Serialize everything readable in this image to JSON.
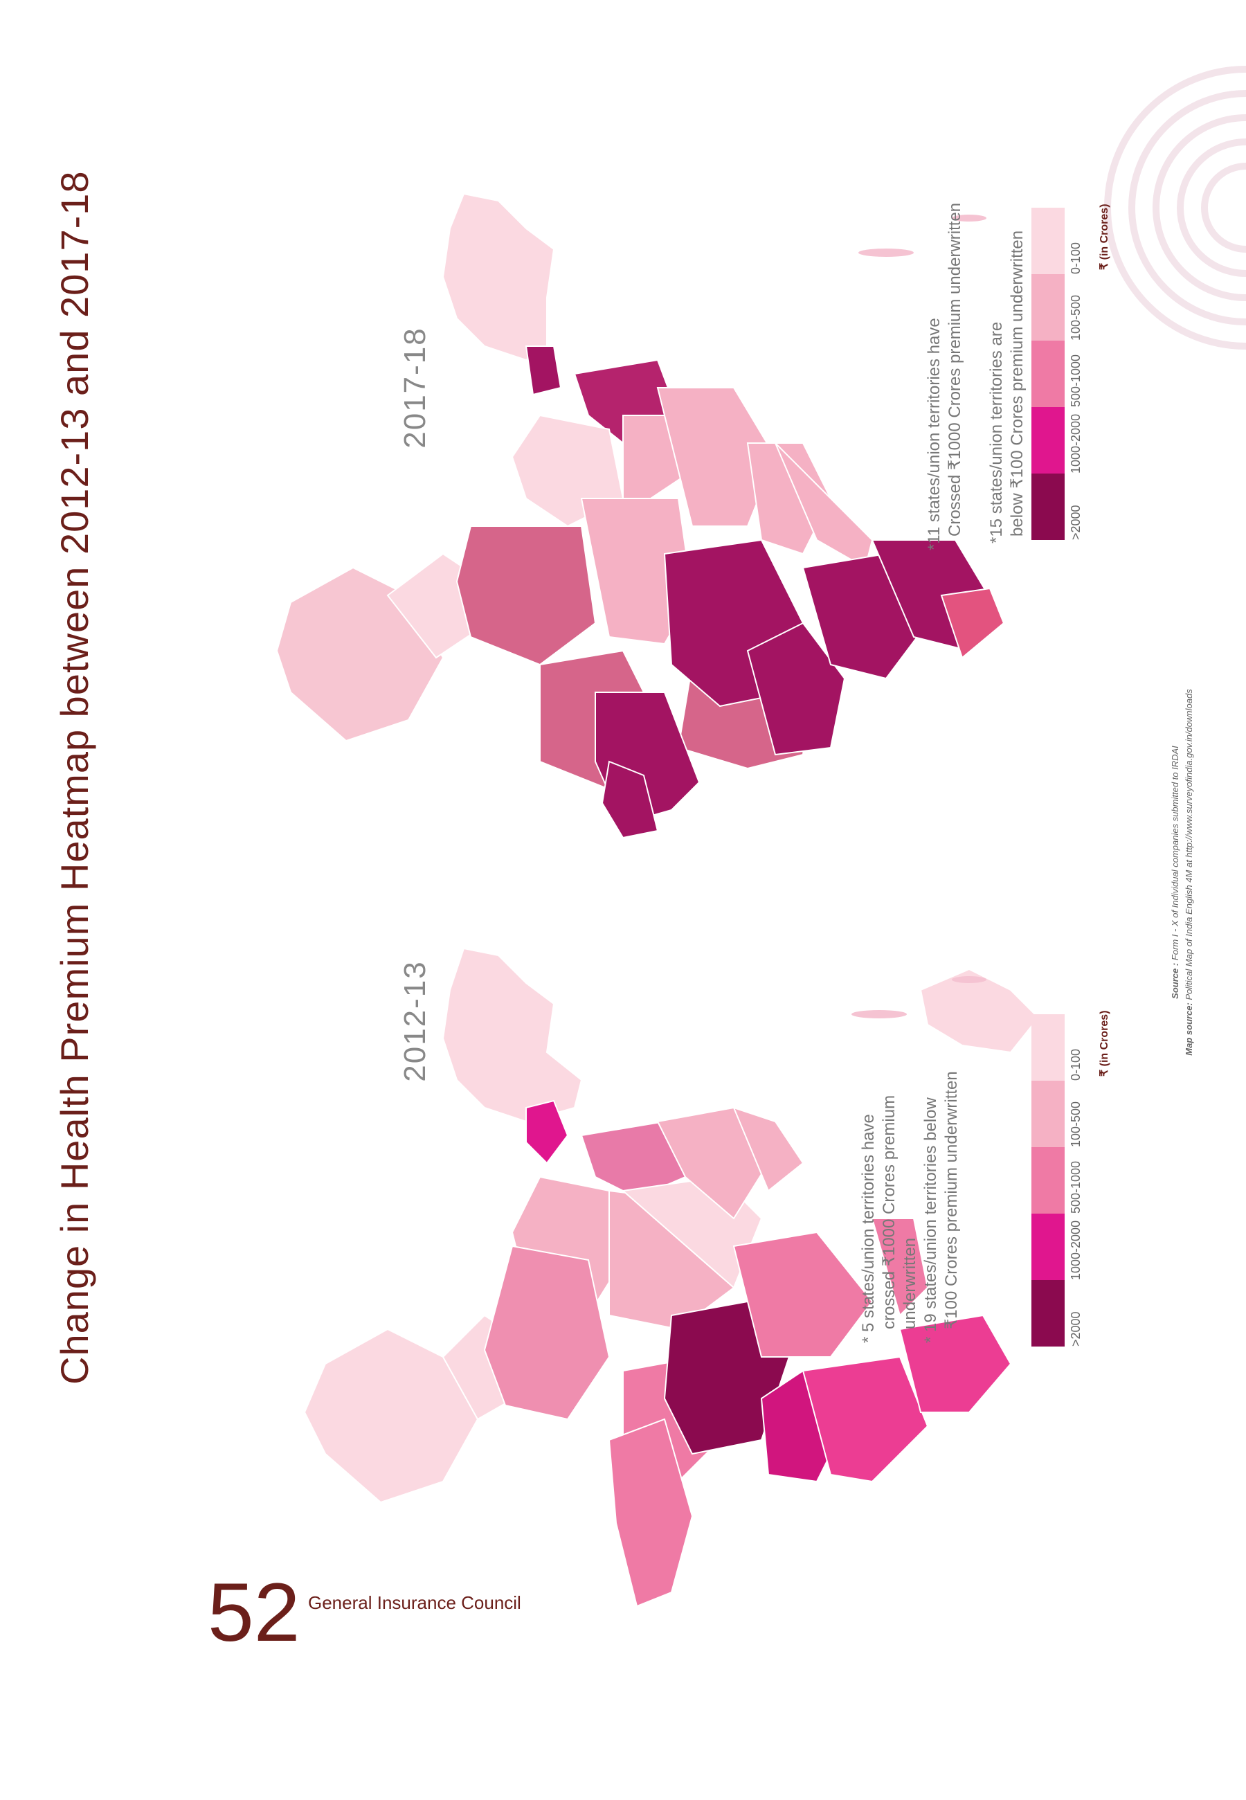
{
  "page": {
    "title": "Change in Health Premium Heatmap between 2012-13 and 2017-18",
    "page_number": "52",
    "org_name": "General Insurance Council"
  },
  "maps": [
    {
      "year": "2012-13",
      "notes": [
        "* 5 states/union territories have",
        "crossed ₹1000 Crores premium",
        "underwritten",
        "* 19 states/union territories below",
        "₹100 Crores premium underwritten"
      ]
    },
    {
      "year": "2017-18",
      "notes": [
        "*11 states/union territories have",
        "Crossed ₹1000 Crores premium underwritten",
        "*15 states/union territories are",
        "below ₹100 Crores premium underwritten"
      ]
    }
  ],
  "legend": {
    "bins": [
      {
        "label": ">2000",
        "color": "#8b0a4f"
      },
      {
        "label": "1000-2000",
        "color": "#e0168e"
      },
      {
        "label": "500-1000",
        "color": "#ef7aa5"
      },
      {
        "label": "100-500",
        "color": "#f5b1c4"
      },
      {
        "label": "0-100",
        "color": "#fbd9e1"
      }
    ],
    "unit": "₹ (in Crores)"
  },
  "source": {
    "label": "Source :",
    "text": "Form I - X of Individual companies submitted to IRDAI",
    "map_label": "Map source:",
    "map_text": "Political Map of India English 4M at http://www.surveyofindia.gov.in/downloads"
  }
}
